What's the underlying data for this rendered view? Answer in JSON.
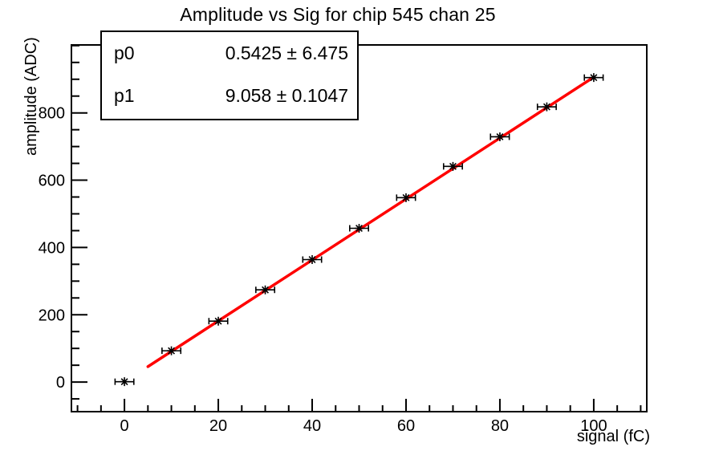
{
  "page": {
    "background": "#ffffff",
    "axis_color": "#000000"
  },
  "chart_data": {
    "type": "scatter",
    "title": "Amplitude vs Sig for chip 545 chan 25",
    "xlabel": "signal (fC)",
    "ylabel": "amplitude (ADC)",
    "grid": false,
    "legend": "none",
    "xlim": [
      -11.3,
      111.3
    ],
    "ylim": [
      -88,
      1002
    ],
    "x_major_ticks": [
      0,
      20,
      40,
      60,
      80,
      100
    ],
    "x_minor_step": 5,
    "x_minor_range": [
      -10,
      110
    ],
    "y_major_ticks": [
      0,
      200,
      400,
      600,
      800
    ],
    "y_minor_step": 50,
    "y_minor_range": [
      -50,
      1000
    ],
    "series": [
      {
        "name": "amplitude-vs-signal-points",
        "marker": "asterisk-8-ray",
        "color": "#000000",
        "x": [
          0,
          10,
          20,
          30,
          40,
          50,
          60,
          70,
          80,
          90,
          100
        ],
        "y": [
          1,
          93,
          181,
          274,
          364,
          457,
          548,
          641,
          729,
          818,
          905
        ],
        "x_err": 2
      }
    ],
    "fit": {
      "type": "linear",
      "p0": 0.5425,
      "p0_err": 6.475,
      "p1": 9.058,
      "p1_err": 0.1047,
      "range": [
        5,
        100
      ],
      "color": "#ff0000"
    }
  },
  "stats_box": {
    "rows": [
      {
        "name": "p0",
        "value": "0.5425 ± 6.475"
      },
      {
        "name": "p1",
        "value": "9.058 ± 0.1047"
      }
    ]
  }
}
